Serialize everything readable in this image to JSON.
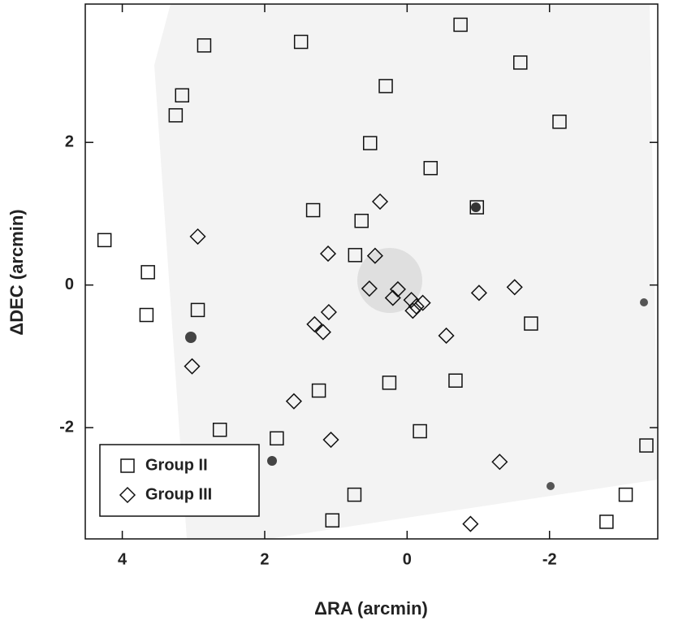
{
  "chart_data": {
    "type": "scatter",
    "x_label": "ΔRA (arcmin)",
    "y_label": "ΔDEC (arcmin)",
    "xlim": [
      4.52,
      -3.52
    ],
    "ylim": [
      -3.56,
      3.94
    ],
    "xticks": [
      4,
      2,
      0,
      -2
    ],
    "yticks": [
      2,
      0,
      -2
    ],
    "legend": "lower left",
    "series": [
      {
        "name": "Group II",
        "marker": "square",
        "color": "#111111",
        "x": [
          2.85,
          1.49,
          -0.75,
          -1.59,
          3.16,
          0.3,
          3.25,
          -2.14,
          0.52,
          -0.33,
          -0.98,
          1.32,
          0.64,
          4.25,
          0.73,
          3.64,
          2.94,
          3.66,
          -1.74,
          0.25,
          -0.68,
          1.24,
          2.63,
          -0.18,
          1.83,
          -3.36,
          0.74,
          -3.07,
          1.05,
          -2.8
        ],
        "values": [
          3.36,
          3.41,
          3.65,
          3.12,
          2.66,
          2.79,
          2.38,
          2.29,
          1.99,
          1.64,
          1.09,
          1.05,
          0.9,
          0.63,
          0.42,
          0.18,
          -0.35,
          -0.42,
          -0.54,
          -1.37,
          -1.34,
          -1.48,
          -2.03,
          -2.05,
          -2.15,
          -2.25,
          -2.94,
          -2.94,
          -3.3,
          -3.32
        ]
      },
      {
        "name": "Group III",
        "marker": "diamond",
        "color": "#111111",
        "x": [
          0.38,
          2.94,
          1.11,
          0.45,
          0.53,
          0.13,
          -1.51,
          -1.01,
          0.2,
          -0.06,
          -0.22,
          -0.13,
          -0.08,
          1.1,
          1.3,
          1.18,
          -0.55,
          3.02,
          1.59,
          1.07,
          -1.3,
          -0.89
        ],
        "values": [
          1.17,
          0.68,
          0.44,
          0.41,
          -0.05,
          -0.06,
          -0.03,
          -0.11,
          -0.18,
          -0.21,
          -0.25,
          -0.3,
          -0.36,
          -0.38,
          -0.55,
          -0.66,
          -0.71,
          -1.14,
          -1.63,
          -2.17,
          -2.48,
          -3.35
        ]
      }
    ]
  }
}
